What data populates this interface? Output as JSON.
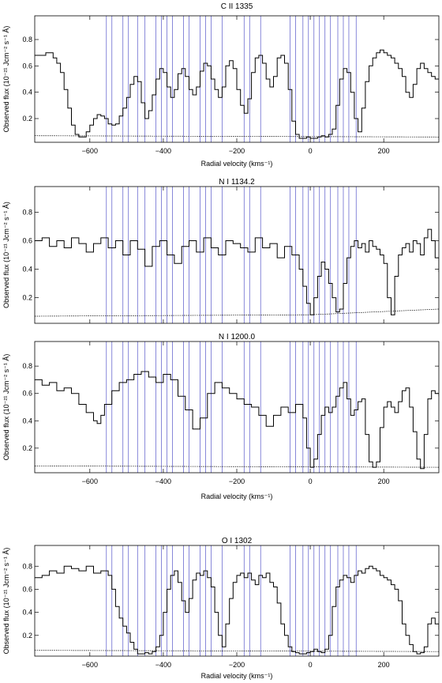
{
  "chart_data": [
    {
      "type": "line",
      "title": "C II 1335",
      "xlabel": "Radial velocity (kms⁻¹)",
      "ylabel": "Observed flux (10⁻²¹ Jcm⁻² s⁻¹ Å)",
      "xlim": [
        -750,
        350
      ],
      "ylim": [
        0.02,
        0.98
      ],
      "xticks": [
        -600,
        -400,
        -200,
        0,
        200
      ],
      "xtick_labels": [
        "−600",
        "−400",
        "−200",
        "0",
        "200"
      ],
      "yticks": [
        0.2,
        0.4,
        0.6,
        0.8
      ],
      "ytick_labels": [
        "0.2",
        "0.4",
        "0.6",
        "0.8"
      ],
      "components": [
        -555,
        -540,
        -510,
        -495,
        -470,
        -450,
        -420,
        -405,
        -390,
        -375,
        -345,
        -330,
        -300,
        -285,
        -270,
        -240,
        -180,
        -165,
        -135,
        -55,
        -40,
        -20,
        -5,
        10,
        25,
        40,
        55,
        75,
        90,
        105,
        125
      ],
      "series": [
        {
          "x": [
            -750,
            -720,
            -700,
            -690,
            -680,
            -670,
            -660,
            -650,
            -640,
            -630,
            -620,
            -610,
            -600,
            -590,
            -580,
            -570,
            -560,
            -550,
            -540,
            -530,
            -520,
            -510,
            -500,
            -490,
            -480,
            -470,
            -460,
            -450,
            -440,
            -430,
            -420,
            -410,
            -400,
            -390,
            -380,
            -370,
            -360,
            -350,
            -340,
            -330,
            -320,
            -310,
            -300,
            -290,
            -280,
            -270,
            -260,
            -250,
            -240,
            -230,
            -220,
            -210,
            -200,
            -190,
            -180,
            -170,
            -160,
            -150,
            -140,
            -130,
            -120,
            -110,
            -100,
            -90,
            -80,
            -70,
            -60,
            -50,
            -40,
            -30,
            -20,
            -10,
            0,
            10,
            20,
            30,
            40,
            50,
            60,
            70,
            80,
            90,
            100,
            110,
            120,
            130,
            140,
            150,
            160,
            170,
            180,
            190,
            200,
            210,
            220,
            230,
            240,
            250,
            260,
            270,
            280,
            290,
            300,
            310,
            320,
            330,
            340,
            350
          ],
          "y": [
            0.68,
            0.7,
            0.66,
            0.62,
            0.55,
            0.42,
            0.28,
            0.15,
            0.08,
            0.06,
            0.06,
            0.1,
            0.15,
            0.2,
            0.23,
            0.22,
            0.2,
            0.16,
            0.15,
            0.16,
            0.22,
            0.28,
            0.36,
            0.46,
            0.52,
            0.48,
            0.32,
            0.2,
            0.26,
            0.38,
            0.5,
            0.58,
            0.55,
            0.44,
            0.36,
            0.42,
            0.54,
            0.58,
            0.52,
            0.42,
            0.38,
            0.44,
            0.56,
            0.62,
            0.6,
            0.5,
            0.42,
            0.36,
            0.44,
            0.6,
            0.64,
            0.58,
            0.42,
            0.3,
            0.24,
            0.35,
            0.55,
            0.66,
            0.68,
            0.62,
            0.5,
            0.44,
            0.52,
            0.66,
            0.68,
            0.62,
            0.42,
            0.18,
            0.08,
            0.05,
            0.05,
            0.06,
            0.05,
            0.05,
            0.06,
            0.07,
            0.06,
            0.08,
            0.12,
            0.3,
            0.5,
            0.58,
            0.55,
            0.4,
            0.2,
            0.1,
            0.28,
            0.48,
            0.6,
            0.66,
            0.7,
            0.72,
            0.7,
            0.68,
            0.66,
            0.62,
            0.58,
            0.52,
            0.4,
            0.36,
            0.46,
            0.58,
            0.62,
            0.58,
            0.55,
            0.52,
            0.5,
            0.5
          ]
        },
        {
          "x": [
            -750,
            350
          ],
          "y": [
            0.07,
            0.06
          ]
        }
      ]
    },
    {
      "type": "line",
      "title": "N I 1134.2",
      "xlabel": "",
      "ylabel": "Observed flux (10⁻²¹ Jcm⁻² s⁻¹ Å)",
      "xlim": [
        -750,
        350
      ],
      "ylim": [
        0.02,
        0.98
      ],
      "xticks": [
        -600,
        -400,
        -200,
        0,
        200
      ],
      "xtick_labels": [],
      "yticks": [
        0.2,
        0.4,
        0.6,
        0.8
      ],
      "ytick_labels": [
        "0.2",
        "0.4",
        "0.6",
        "0.8"
      ],
      "components": [
        -555,
        -540,
        -510,
        -495,
        -470,
        -450,
        -420,
        -405,
        -390,
        -375,
        -345,
        -330,
        -300,
        -285,
        -270,
        -240,
        -180,
        -165,
        -135,
        -55,
        -40,
        -20,
        -5,
        10,
        25,
        40,
        55,
        75,
        90,
        105,
        125
      ],
      "series": [
        {
          "x": [
            -750,
            -730,
            -710,
            -690,
            -670,
            -650,
            -630,
            -610,
            -590,
            -570,
            -550,
            -530,
            -510,
            -490,
            -470,
            -450,
            -430,
            -410,
            -390,
            -370,
            -350,
            -330,
            -310,
            -290,
            -270,
            -250,
            -230,
            -210,
            -190,
            -170,
            -150,
            -130,
            -110,
            -90,
            -70,
            -50,
            -30,
            -20,
            -10,
            0,
            10,
            20,
            30,
            40,
            50,
            60,
            70,
            80,
            90,
            100,
            110,
            120,
            130,
            140,
            150,
            160,
            170,
            180,
            190,
            200,
            210,
            220,
            230,
            240,
            250,
            260,
            270,
            280,
            290,
            300,
            310,
            320,
            330,
            340,
            350
          ],
          "y": [
            0.6,
            0.62,
            0.56,
            0.6,
            0.55,
            0.62,
            0.58,
            0.52,
            0.58,
            0.62,
            0.55,
            0.6,
            0.5,
            0.6,
            0.54,
            0.42,
            0.56,
            0.6,
            0.5,
            0.44,
            0.56,
            0.6,
            0.52,
            0.62,
            0.55,
            0.5,
            0.6,
            0.58,
            0.55,
            0.52,
            0.62,
            0.55,
            0.58,
            0.48,
            0.56,
            0.5,
            0.4,
            0.28,
            0.16,
            0.08,
            0.2,
            0.35,
            0.45,
            0.4,
            0.3,
            0.2,
            0.1,
            0.12,
            0.3,
            0.48,
            0.56,
            0.6,
            0.55,
            0.58,
            0.52,
            0.6,
            0.56,
            0.54,
            0.5,
            0.44,
            0.2,
            0.08,
            0.35,
            0.5,
            0.55,
            0.58,
            0.52,
            0.6,
            0.58,
            0.5,
            0.62,
            0.68,
            0.6,
            0.48,
            0.38
          ]
        },
        {
          "x": [
            -750,
            0,
            350
          ],
          "y": [
            0.07,
            0.08,
            0.12
          ]
        }
      ]
    },
    {
      "type": "line",
      "title": "N I 1200.0",
      "xlabel": "Radial velocity (kms⁻¹)",
      "ylabel": "Observed flux (10⁻²¹ Jcm⁻² s⁻¹ Å)",
      "xlim": [
        -750,
        350
      ],
      "ylim": [
        0.02,
        0.98
      ],
      "xticks": [
        -600,
        -400,
        -200,
        0,
        200
      ],
      "xtick_labels": [
        "−600",
        "−400",
        "−200",
        "0",
        "200"
      ],
      "yticks": [
        0.2,
        0.4,
        0.6,
        0.8
      ],
      "ytick_labels": [
        "0.2",
        "0.4",
        "0.6",
        "0.8"
      ],
      "components": [
        -555,
        -540,
        -510,
        -495,
        -470,
        -450,
        -420,
        -405,
        -390,
        -375,
        -345,
        -330,
        -300,
        -285,
        -270,
        -240,
        -180,
        -165,
        -135,
        -55,
        -40,
        -20,
        -5,
        10,
        25,
        40,
        55,
        75,
        90,
        105,
        125
      ],
      "series": [
        {
          "x": [
            -750,
            -730,
            -710,
            -690,
            -670,
            -650,
            -630,
            -610,
            -590,
            -580,
            -570,
            -560,
            -540,
            -520,
            -500,
            -480,
            -460,
            -440,
            -420,
            -400,
            -380,
            -360,
            -340,
            -320,
            -300,
            -280,
            -260,
            -240,
            -220,
            -200,
            -180,
            -160,
            -140,
            -120,
            -100,
            -80,
            -60,
            -40,
            -20,
            -10,
            0,
            10,
            20,
            30,
            40,
            50,
            60,
            70,
            80,
            90,
            100,
            110,
            120,
            130,
            140,
            150,
            160,
            170,
            180,
            190,
            200,
            210,
            220,
            230,
            240,
            250,
            260,
            270,
            280,
            290,
            300,
            310,
            320,
            330,
            340,
            350
          ],
          "y": [
            0.7,
            0.66,
            0.68,
            0.62,
            0.64,
            0.6,
            0.52,
            0.46,
            0.4,
            0.38,
            0.44,
            0.52,
            0.62,
            0.68,
            0.7,
            0.74,
            0.76,
            0.72,
            0.68,
            0.74,
            0.7,
            0.58,
            0.48,
            0.34,
            0.42,
            0.6,
            0.68,
            0.64,
            0.6,
            0.56,
            0.52,
            0.5,
            0.44,
            0.36,
            0.44,
            0.5,
            0.46,
            0.52,
            0.42,
            0.2,
            0.06,
            0.12,
            0.3,
            0.44,
            0.5,
            0.46,
            0.5,
            0.58,
            0.64,
            0.68,
            0.56,
            0.44,
            0.48,
            0.54,
            0.56,
            0.3,
            0.1,
            0.06,
            0.1,
            0.35,
            0.5,
            0.54,
            0.5,
            0.46,
            0.54,
            0.62,
            0.64,
            0.5,
            0.32,
            0.12,
            0.05,
            0.3,
            0.56,
            0.62,
            0.6,
            0.58
          ]
        },
        {
          "x": [
            -750,
            350
          ],
          "y": [
            0.07,
            0.06
          ]
        }
      ]
    },
    {
      "type": "line",
      "title": "O I 1302",
      "xlabel": "Radial velocity (kms⁻¹)",
      "ylabel": "Observed flux (10⁻²¹ Jcm⁻² s⁻¹ Å)",
      "xlim": [
        -750,
        350
      ],
      "ylim": [
        0.02,
        0.98
      ],
      "xticks": [
        -600,
        -400,
        -200,
        0,
        200
      ],
      "xtick_labels": [
        "−600",
        "−400",
        "−200",
        "0",
        "200"
      ],
      "yticks": [
        0.2,
        0.4,
        0.6,
        0.8
      ],
      "ytick_labels": [
        "0.2",
        "0.4",
        "0.6",
        "0.8"
      ],
      "components": [
        -555,
        -540,
        -510,
        -495,
        -470,
        -450,
        -420,
        -405,
        -390,
        -375,
        -345,
        -330,
        -300,
        -285,
        -270,
        -240,
        -180,
        -165,
        -135,
        -55,
        -40,
        -20,
        -5,
        10,
        25,
        40,
        55,
        75,
        90,
        105,
        125
      ],
      "series": [
        {
          "x": [
            -750,
            -730,
            -710,
            -690,
            -670,
            -650,
            -630,
            -610,
            -590,
            -570,
            -550,
            -540,
            -530,
            -520,
            -510,
            -500,
            -490,
            -480,
            -470,
            -460,
            -450,
            -440,
            -430,
            -420,
            -410,
            -400,
            -390,
            -380,
            -370,
            -360,
            -350,
            -340,
            -330,
            -320,
            -310,
            -300,
            -290,
            -280,
            -270,
            -260,
            -250,
            -240,
            -230,
            -220,
            -210,
            -200,
            -190,
            -180,
            -170,
            -160,
            -150,
            -140,
            -130,
            -120,
            -110,
            -100,
            -90,
            -80,
            -70,
            -60,
            -50,
            -40,
            -30,
            -20,
            -10,
            0,
            10,
            20,
            30,
            40,
            50,
            60,
            70,
            80,
            90,
            100,
            110,
            120,
            130,
            140,
            150,
            160,
            170,
            180,
            190,
            200,
            210,
            220,
            230,
            240,
            250,
            260,
            270,
            280,
            290,
            300,
            310,
            320,
            330,
            340,
            350
          ],
          "y": [
            0.7,
            0.72,
            0.76,
            0.74,
            0.8,
            0.78,
            0.76,
            0.8,
            0.74,
            0.76,
            0.72,
            0.6,
            0.45,
            0.35,
            0.28,
            0.22,
            0.14,
            0.08,
            0.04,
            0.04,
            0.05,
            0.04,
            0.06,
            0.1,
            0.2,
            0.4,
            0.6,
            0.72,
            0.76,
            0.66,
            0.5,
            0.4,
            0.52,
            0.68,
            0.74,
            0.72,
            0.76,
            0.7,
            0.62,
            0.4,
            0.2,
            0.1,
            0.3,
            0.52,
            0.66,
            0.72,
            0.74,
            0.7,
            0.74,
            0.68,
            0.64,
            0.72,
            0.7,
            0.74,
            0.66,
            0.62,
            0.48,
            0.3,
            0.2,
            0.1,
            0.06,
            0.05,
            0.04,
            0.04,
            0.05,
            0.06,
            0.08,
            0.06,
            0.05,
            0.08,
            0.2,
            0.45,
            0.62,
            0.68,
            0.72,
            0.7,
            0.66,
            0.72,
            0.76,
            0.74,
            0.78,
            0.8,
            0.78,
            0.76,
            0.72,
            0.7,
            0.68,
            0.64,
            0.6,
            0.5,
            0.3,
            0.2,
            0.12,
            0.06,
            0.04,
            0.05,
            0.1,
            0.3,
            0.35,
            0.3,
            0.25
          ]
        },
        {
          "x": [
            -750,
            350
          ],
          "y": [
            0.07,
            0.06
          ]
        }
      ]
    }
  ]
}
